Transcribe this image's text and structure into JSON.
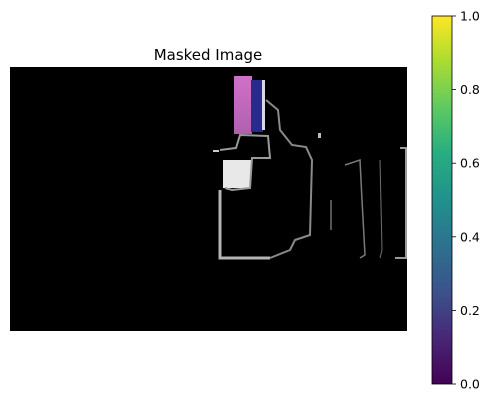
{
  "chart_data": {
    "type": "heatmap",
    "title": "Masked Image",
    "axes_visible": false,
    "colorbar": {
      "colormap": "viridis",
      "range": [
        0.0,
        1.0
      ],
      "ticks": [
        0.0,
        0.2,
        0.4,
        0.6,
        0.8,
        1.0
      ],
      "tick_labels": [
        "0.0",
        "0.2",
        "0.4",
        "0.6",
        "0.8",
        "1.0"
      ],
      "colors": [
        "#440154",
        "#3b528b",
        "#21918c",
        "#5ec962",
        "#fde725"
      ]
    },
    "image_content": "masked photo, mostly black, with visible fragments of a storefront and signs"
  }
}
